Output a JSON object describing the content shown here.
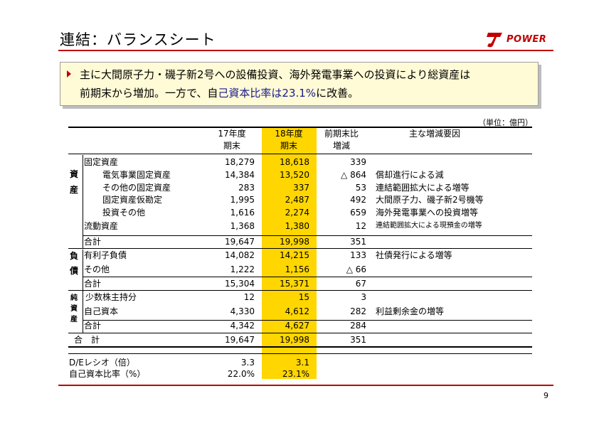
{
  "title": "連結：バランスシート",
  "logo": {
    "brand": "POWER"
  },
  "callout": {
    "line1": "主に大間原子力・磯子新2号への設備投資、海外発電事業への投資により総資産は",
    "line2_prefix": "前期末から増加。一方で、自",
    "line2_em": "己資本比率は23.1%",
    "line2_suffix": "に改善。"
  },
  "unit": "（単位：億円）",
  "headers": {
    "fy17": [
      "17年度",
      "期末"
    ],
    "fy18": [
      "18年度",
      "期末"
    ],
    "diff": [
      "前期末比",
      "増減"
    ],
    "reason": "主な増減要因"
  },
  "sections": {
    "assets": [
      "資",
      "産"
    ],
    "liabilities": [
      "負",
      "債"
    ],
    "equity": [
      "純",
      "資",
      "産"
    ]
  },
  "rows": [
    {
      "label": "固定資産",
      "fy17": "18,279",
      "fy18": "18,618",
      "diff": "339",
      "reason": ""
    },
    {
      "label": "電気事業固定資産",
      "fy17": "14,384",
      "fy18": "13,520",
      "diff": "△ 864",
      "reason": "償却進行による減"
    },
    {
      "label": "その他の固定資産",
      "fy17": "283",
      "fy18": "337",
      "diff": "53",
      "reason": "連結範囲拡大による増等"
    },
    {
      "label": "固定資産仮勘定",
      "fy17": "1,995",
      "fy18": "2,487",
      "diff": "492",
      "reason": "大間原子力、磯子新2号機等"
    },
    {
      "label": "投資その他",
      "fy17": "1,616",
      "fy18": "2,274",
      "diff": "659",
      "reason": "海外発電事業への投資増等"
    },
    {
      "label": "流動資産",
      "fy17": "1,368",
      "fy18": "1,380",
      "diff": "12",
      "reason": "連結範囲拡大による現預金の増等"
    },
    {
      "label": "合計",
      "fy17": "19,647",
      "fy18": "19,998",
      "diff": "351",
      "reason": ""
    },
    {
      "label": "有利子負債",
      "fy17": "14,082",
      "fy18": "14,215",
      "diff": "133",
      "reason": "社債発行による増等"
    },
    {
      "label": "その他",
      "fy17": "1,222",
      "fy18": "1,156",
      "diff": "△ 66",
      "reason": ""
    },
    {
      "label": "合計",
      "fy17": "15,304",
      "fy18": "15,371",
      "diff": "67",
      "reason": ""
    },
    {
      "label": "少数株主持分",
      "fy17": "12",
      "fy18": "15",
      "diff": "3",
      "reason": ""
    },
    {
      "label": "自己資本",
      "fy17": "4,330",
      "fy18": "4,612",
      "diff": "282",
      "reason": "利益剰余金の増等"
    },
    {
      "label": "合計",
      "fy17": "4,342",
      "fy18": "4,627",
      "diff": "284",
      "reason": ""
    },
    {
      "label": "合　計",
      "fy17": "19,647",
      "fy18": "19,998",
      "diff": "351",
      "reason": ""
    }
  ],
  "ratios": [
    {
      "label": "D/Eレシオ（倍）",
      "fy17": "3.3",
      "fy18": "3.1"
    },
    {
      "label": "自己資本比率（%）",
      "fy17": "22.0%",
      "fy18": "23.1%"
    }
  ],
  "page_number": "9"
}
